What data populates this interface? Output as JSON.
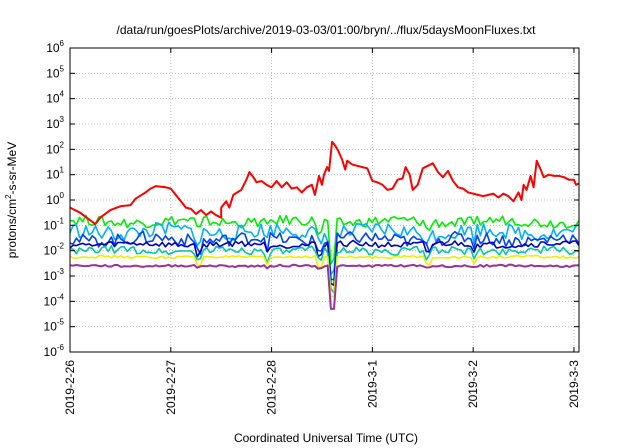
{
  "chart_data": {
    "type": "line",
    "title": "/data/run/goesPlots/archive/2019-03-03/01:00/bryn/../flux/5daysMoonFluxes.txt",
    "xlabel": "Coordinated Universal Time (UTC)",
    "ylabel": {
      "base": "protons/cm",
      "sup": "2",
      "rest": "-s-sr-MeV"
    },
    "log_scale_y": true,
    "grid": true,
    "ylim": [
      -6,
      6
    ],
    "xlim": [
      0,
      5.05
    ],
    "x_ticks": [
      {
        "x": 0,
        "label": "2019-2-26"
      },
      {
        "x": 1,
        "label": "2019-2-27"
      },
      {
        "x": 2,
        "label": "2019-2-28"
      },
      {
        "x": 3,
        "label": "2019-3-1"
      },
      {
        "x": 4,
        "label": "2019-3-2"
      },
      {
        "x": 5,
        "label": "2019-3-3"
      }
    ],
    "y_ticks": [
      {
        "exp": 6,
        "base": "10",
        "sup": "6"
      },
      {
        "exp": 5,
        "base": "10",
        "sup": "5"
      },
      {
        "exp": 4,
        "base": "10",
        "sup": "4"
      },
      {
        "exp": 3,
        "base": "10",
        "sup": "3"
      },
      {
        "exp": 2,
        "base": "10",
        "sup": "2"
      },
      {
        "exp": 1,
        "base": "10",
        "sup": "1"
      },
      {
        "exp": 0,
        "base": "10",
        "sup": "0"
      },
      {
        "exp": -1,
        "base": "10",
        "sup": "-1"
      },
      {
        "exp": -2,
        "base": "10",
        "sup": "-2"
      },
      {
        "exp": -3,
        "base": "10",
        "sup": "-3"
      },
      {
        "exp": -4,
        "base": "10",
        "sup": "-4"
      },
      {
        "exp": -5,
        "base": "10",
        "sup": "-5"
      },
      {
        "exp": -6,
        "base": "10",
        "sup": "-6"
      }
    ],
    "series": [
      {
        "color": "#ff0000",
        "width": 2,
        "points": [
          [
            0.0,
            -0.3
          ],
          [
            0.1,
            -0.5
          ],
          [
            0.2,
            -0.8
          ],
          [
            0.25,
            -0.95
          ],
          [
            0.3,
            -0.7
          ],
          [
            0.4,
            -0.4
          ],
          [
            0.5,
            -0.25
          ],
          [
            0.6,
            -0.2
          ],
          [
            0.65,
            0.05
          ],
          [
            0.75,
            0.3
          ],
          [
            0.8,
            0.45
          ],
          [
            0.85,
            0.55
          ],
          [
            0.95,
            0.5
          ],
          [
            1.0,
            0.45
          ],
          [
            1.05,
            0.2
          ],
          [
            1.1,
            -0.05
          ],
          [
            1.15,
            -0.3
          ],
          [
            1.2,
            -0.35
          ],
          [
            1.25,
            -0.55
          ],
          [
            1.3,
            -0.4
          ],
          [
            1.35,
            -0.6
          ],
          [
            1.4,
            -0.45
          ],
          [
            1.45,
            -0.6
          ],
          [
            1.5,
            -0.7
          ],
          [
            1.5,
            -0.3
          ],
          [
            1.55,
            -0.05
          ],
          [
            1.58,
            -0.3
          ],
          [
            1.62,
            0.2
          ],
          [
            1.7,
            0.4
          ],
          [
            1.75,
            0.8
          ],
          [
            1.78,
            1.1
          ],
          [
            1.82,
            0.9
          ],
          [
            1.85,
            0.7
          ],
          [
            1.9,
            0.75
          ],
          [
            1.95,
            0.6
          ],
          [
            2.0,
            0.5
          ],
          [
            2.05,
            0.75
          ],
          [
            2.1,
            0.5
          ],
          [
            2.15,
            0.7
          ],
          [
            2.2,
            0.45
          ],
          [
            2.25,
            0.5
          ],
          [
            2.3,
            0.3
          ],
          [
            2.35,
            0.5
          ],
          [
            2.4,
            0.6
          ],
          [
            2.43,
            0.2
          ],
          [
            2.47,
            0.95
          ],
          [
            2.5,
            0.6
          ],
          [
            2.52,
            1.0
          ],
          [
            2.55,
            1.3
          ],
          [
            2.57,
            1.15
          ],
          [
            2.6,
            2.3
          ],
          [
            2.63,
            2.15
          ],
          [
            2.66,
            1.95
          ],
          [
            2.7,
            1.6
          ],
          [
            2.73,
            1.2
          ],
          [
            2.75,
            1.55
          ],
          [
            2.8,
            1.4
          ],
          [
            2.85,
            1.35
          ],
          [
            2.9,
            1.3
          ],
          [
            2.95,
            1.25
          ],
          [
            3.0,
            0.75
          ],
          [
            3.05,
            0.7
          ],
          [
            3.1,
            0.6
          ],
          [
            3.15,
            0.4
          ],
          [
            3.2,
            0.45
          ],
          [
            3.25,
            0.8
          ],
          [
            3.3,
            0.85
          ],
          [
            3.33,
            1.3
          ],
          [
            3.37,
            1.0
          ],
          [
            3.4,
            0.4
          ],
          [
            3.45,
            0.6
          ],
          [
            3.5,
            1.25
          ],
          [
            3.55,
            1.35
          ],
          [
            3.6,
            1.45
          ],
          [
            3.65,
            1.1
          ],
          [
            3.7,
            0.9
          ],
          [
            3.75,
            1.15
          ],
          [
            3.8,
            0.75
          ],
          [
            3.85,
            0.5
          ],
          [
            3.9,
            0.45
          ],
          [
            3.95,
            0.3
          ],
          [
            4.0,
            0.25
          ],
          [
            4.05,
            0.2
          ],
          [
            4.1,
            0.15
          ],
          [
            4.15,
            0.2
          ],
          [
            4.2,
            0.25
          ],
          [
            4.25,
            0.1
          ],
          [
            4.3,
            0.25
          ],
          [
            4.35,
            0.15
          ],
          [
            4.4,
            -0.05
          ],
          [
            4.45,
            0.3
          ],
          [
            4.48,
            0.0
          ],
          [
            4.5,
            0.6
          ],
          [
            4.53,
            0.4
          ],
          [
            4.57,
            0.95
          ],
          [
            4.6,
            0.5
          ],
          [
            4.63,
            1.55
          ],
          [
            4.67,
            1.2
          ],
          [
            4.7,
            0.9
          ],
          [
            4.75,
            1.0
          ],
          [
            4.8,
            0.95
          ],
          [
            4.85,
            0.95
          ],
          [
            4.9,
            0.9
          ],
          [
            4.95,
            0.8
          ],
          [
            5.0,
            0.8
          ],
          [
            5.02,
            0.6
          ],
          [
            5.05,
            0.65
          ]
        ]
      },
      {
        "color": "#00ee00",
        "width": 1.6,
        "base": -0.85,
        "amp": 0.2,
        "phase": 1
      },
      {
        "color": "#00b0ff",
        "width": 1.6,
        "base": -1.25,
        "amp": 0.3,
        "phase": 2
      },
      {
        "color": "#0040ff",
        "width": 1.6,
        "base": -1.55,
        "amp": 0.25,
        "phase": 3
      },
      {
        "color": "#0000c0",
        "width": 1.6,
        "base": -1.75,
        "amp": 0.12,
        "phase": 4
      },
      {
        "color": "#00c8a0",
        "width": 1.6,
        "base": -2.0,
        "amp": 0.15,
        "phase": 5
      },
      {
        "color": "#eeee00",
        "width": 1.6,
        "base": -2.25,
        "amp": 0.05,
        "phase": 6
      },
      {
        "color": "#993399",
        "width": 2,
        "base": -2.6,
        "amp": 0.04,
        "phase": 7
      }
    ]
  }
}
